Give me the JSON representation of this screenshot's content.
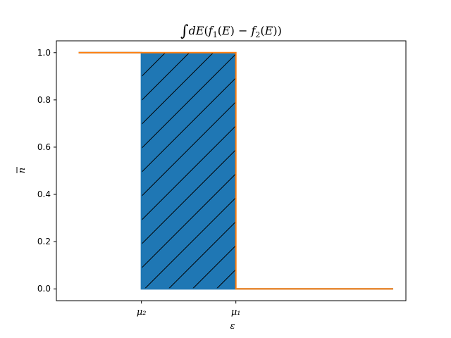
{
  "chart_data": {
    "type": "line",
    "title": "∫dE(f₁(E) − f₂(E))",
    "xlabel": "ε",
    "ylabel": "n̄",
    "x_ticks": [
      {
        "value": 2,
        "label": "μ₂"
      },
      {
        "value": 4,
        "label": "μ₁"
      }
    ],
    "y_ticks": [
      0.0,
      0.2,
      0.4,
      0.6,
      0.8,
      1.0
    ],
    "y_tick_labels": [
      "0.0",
      "0.2",
      "0.4",
      "0.6",
      "0.8",
      "1.0"
    ],
    "xlim": [
      0.2,
      7.6
    ],
    "ylim": [
      -0.05,
      1.05
    ],
    "grid": false,
    "series": [
      {
        "color": "#1f77b4",
        "step_at": 2,
        "x": [
          0.67,
          2,
          2,
          7.33
        ],
        "y": [
          1,
          1,
          0,
          0
        ]
      },
      {
        "color": "#ff7f0e",
        "step_at": 4,
        "x": [
          0.67,
          4,
          4,
          7.33
        ],
        "y": [
          1,
          1,
          0,
          0
        ]
      }
    ],
    "fill": {
      "x_from": 2,
      "x_to": 4,
      "y_from": 0,
      "y_to": 1,
      "color": "#1f77b4",
      "hatch": "/"
    }
  }
}
